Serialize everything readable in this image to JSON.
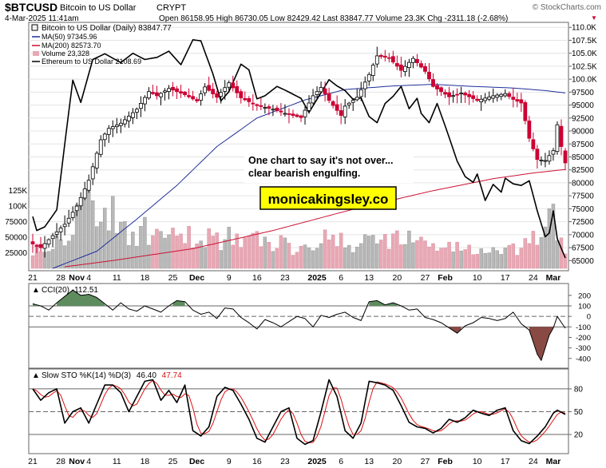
{
  "header": {
    "symbol": "$BTCUSD",
    "name": "Bitcoin to US Dollar",
    "exchange": "CRYPT",
    "copyright": "© StockCharts.com",
    "date": "4-Mar-2025 11:41am",
    "ohlc_text": "Open 86158.95  High 86730.05  Low 82429.42  Last 83847.77  Volume 23.3K  Chg -2311.18 (-2.68%)",
    "chg_arrow": "▼"
  },
  "annotations": {
    "note_line1": "One chart to say it's not over...",
    "note_line2": "clear bearish engulfing.",
    "watermark": "monicakingsley.co"
  },
  "colors": {
    "up": "#000000",
    "down": "#cc0033",
    "ma50": "#1f2f99",
    "ma200": "#cc1133",
    "eth": "#000000",
    "vol_down": "#e8a8b4",
    "vol_up": "#b8b8b8",
    "cci_pos": "#5e8c5e",
    "cci_neg": "#8a4a44",
    "sto_k": "#000000",
    "sto_d": "#dd1111",
    "watermark_bg": "#ffff00"
  },
  "chart_data": [
    {
      "type": "candlestick",
      "legend": [
        {
          "text": "Bitcoin to US Dollar (Daily) 83847.77",
          "swatch": "candle"
        },
        {
          "text": "MA(50) 97345.96",
          "swatch": "ma50"
        },
        {
          "text": "MA(200) 82573.70",
          "swatch": "ma200"
        },
        {
          "text": "Volume 23,328",
          "swatch": "vol"
        },
        {
          "text": "Ethereum to US Dollar 2108.69",
          "swatch": "eth"
        }
      ],
      "y_ticks": [
        65000,
        67500,
        70000,
        72500,
        75000,
        77500,
        80000,
        82500,
        85000,
        87500,
        90000,
        92500,
        95000,
        97500,
        100000,
        102500,
        105000,
        107500,
        110000
      ],
      "y_tick_labels": [
        "65000",
        "67500",
        "70000",
        "72500",
        "75000",
        "77500",
        "80000",
        "82500",
        "85000",
        "87500",
        "90000",
        "92500",
        "95000",
        "97500",
        "100.0K",
        "102.5K",
        "105.0K",
        "107.5K",
        "110.0K"
      ],
      "ylim": [
        63500,
        110500
      ],
      "volume_ticks": [
        "25000",
        "50000",
        "75000",
        "100K",
        "125K"
      ],
      "volume_tick_values": [
        25000,
        50000,
        75000,
        100000,
        125000
      ],
      "volume_max": 200000,
      "price_anchors": [
        [
          0,
          68200
        ],
        [
          2,
          67500
        ],
        [
          5,
          69800
        ],
        [
          8,
          72000
        ],
        [
          11,
          75500
        ],
        [
          14,
          80500
        ],
        [
          17,
          88300
        ],
        [
          19,
          90500
        ],
        [
          22,
          91500
        ],
        [
          26,
          94200
        ],
        [
          29,
          97600
        ],
        [
          31,
          96800
        ],
        [
          34,
          98200
        ],
        [
          38,
          97000
        ],
        [
          41,
          95800
        ],
        [
          43,
          98500
        ],
        [
          46,
          96500
        ],
        [
          49,
          99300
        ],
        [
          52,
          96400
        ],
        [
          56,
          94900
        ],
        [
          60,
          94200
        ],
        [
          63,
          93400
        ],
        [
          67,
          92600
        ],
        [
          70,
          96800
        ],
        [
          72,
          98400
        ],
        [
          74,
          95900
        ],
        [
          77,
          93000
        ],
        [
          78,
          94800
        ],
        [
          81,
          96500
        ],
        [
          84,
          100900
        ],
        [
          86,
          104500
        ],
        [
          89,
          104100
        ],
        [
          92,
          101700
        ],
        [
          95,
          104000
        ],
        [
          98,
          101500
        ],
        [
          100,
          98600
        ],
        [
          104,
          96600
        ],
        [
          107,
          97300
        ],
        [
          111,
          95900
        ],
        [
          115,
          96800
        ],
        [
          118,
          97200
        ],
        [
          120,
          96100
        ],
        [
          122,
          95400
        ],
        [
          124,
          88600
        ],
        [
          126,
          84500
        ],
        [
          128,
          84300
        ],
        [
          130,
          86200
        ],
        [
          131,
          91200
        ],
        [
          132,
          87000
        ],
        [
          133,
          83848
        ]
      ],
      "volume_anchors": [
        [
          0,
          35000
        ],
        [
          5,
          40000
        ],
        [
          10,
          75000
        ],
        [
          14,
          120000
        ],
        [
          18,
          90000
        ],
        [
          24,
          62000
        ],
        [
          30,
          55000
        ],
        [
          36,
          45000
        ],
        [
          42,
          52000
        ],
        [
          48,
          50000
        ],
        [
          54,
          44000
        ],
        [
          60,
          43000
        ],
        [
          66,
          34000
        ],
        [
          72,
          55000
        ],
        [
          78,
          36000
        ],
        [
          84,
          45000
        ],
        [
          90,
          52000
        ],
        [
          96,
          42000
        ],
        [
          100,
          38000
        ],
        [
          106,
          33000
        ],
        [
          112,
          28000
        ],
        [
          118,
          24000
        ],
        [
          124,
          36000
        ],
        [
          128,
          65000
        ],
        [
          130,
          80000
        ],
        [
          133,
          23328
        ]
      ],
      "ma50_anchors": [
        [
          0,
          62000
        ],
        [
          16,
          66800
        ],
        [
          26,
          73000
        ],
        [
          36,
          79500
        ],
        [
          46,
          87000
        ],
        [
          56,
          92500
        ],
        [
          68,
          96000
        ],
        [
          78,
          98000
        ],
        [
          90,
          98700
        ],
        [
          100,
          99000
        ],
        [
          110,
          98600
        ],
        [
          120,
          98300
        ],
        [
          128,
          97800
        ],
        [
          133,
          97346
        ]
      ],
      "ma200_anchors": [
        [
          8,
          63800
        ],
        [
          20,
          65000
        ],
        [
          40,
          67300
        ],
        [
          60,
          70800
        ],
        [
          80,
          74900
        ],
        [
          100,
          78500
        ],
        [
          115,
          80800
        ],
        [
          125,
          81900
        ],
        [
          133,
          82574
        ]
      ],
      "eth_anchors": [
        [
          0,
          73500
        ],
        [
          1,
          70800
        ],
        [
          3,
          71500
        ],
        [
          6,
          74800
        ],
        [
          8,
          87500
        ],
        [
          10,
          99800
        ],
        [
          12,
          95500
        ],
        [
          15,
          103800
        ],
        [
          18,
          104900
        ],
        [
          22,
          103200
        ],
        [
          25,
          105000
        ],
        [
          28,
          103800
        ],
        [
          31,
          104200
        ],
        [
          34,
          105400
        ],
        [
          37,
          102800
        ],
        [
          40,
          107600
        ],
        [
          42,
          107400
        ],
        [
          45,
          101000
        ],
        [
          47,
          95800
        ],
        [
          49,
          97600
        ],
        [
          52,
          102900
        ],
        [
          54,
          101800
        ],
        [
          56,
          96200
        ],
        [
          58,
          96800
        ],
        [
          61,
          98600
        ],
        [
          63,
          97900
        ],
        [
          67,
          96300
        ],
        [
          69,
          93600
        ],
        [
          72,
          97400
        ],
        [
          74,
          99900
        ],
        [
          76,
          98700
        ],
        [
          78,
          97800
        ],
        [
          80,
          96100
        ],
        [
          82,
          96400
        ],
        [
          84,
          92800
        ],
        [
          86,
          91600
        ],
        [
          88,
          95300
        ],
        [
          90,
          96700
        ],
        [
          92,
          98600
        ],
        [
          94,
          94300
        ],
        [
          96,
          96300
        ],
        [
          97,
          93400
        ],
        [
          99,
          91600
        ],
        [
          101,
          95300
        ],
        [
          103,
          91000
        ],
        [
          106,
          84200
        ],
        [
          108,
          81200
        ],
        [
          110,
          80100
        ],
        [
          111,
          81700
        ],
        [
          113,
          76600
        ],
        [
          115,
          79700
        ],
        [
          117,
          78200
        ],
        [
          118,
          80900
        ],
        [
          120,
          79800
        ],
        [
          122,
          79500
        ],
        [
          124,
          80400
        ],
        [
          126,
          74600
        ],
        [
          128,
          69600
        ],
        [
          129,
          70300
        ],
        [
          130,
          74600
        ],
        [
          131,
          69200
        ],
        [
          133,
          65500
        ]
      ]
    },
    {
      "type": "line",
      "label": "CCI(20) -112.51",
      "y_ticks": [
        200,
        100,
        0,
        -100,
        -200,
        -300,
        -400
      ],
      "y_tick_labels": [
        "200",
        "100",
        "0",
        "-100",
        "-200",
        "-300",
        "-400"
      ],
      "ylim": [
        -470,
        290
      ],
      "levels": [
        100,
        0,
        -100
      ],
      "anchors": [
        [
          0,
          120
        ],
        [
          2,
          100
        ],
        [
          4,
          60
        ],
        [
          6,
          130
        ],
        [
          8,
          190
        ],
        [
          10,
          250
        ],
        [
          12,
          200
        ],
        [
          14,
          210
        ],
        [
          16,
          180
        ],
        [
          18,
          120
        ],
        [
          20,
          60
        ],
        [
          22,
          130
        ],
        [
          24,
          70
        ],
        [
          26,
          50
        ],
        [
          28,
          100
        ],
        [
          30,
          70
        ],
        [
          32,
          40
        ],
        [
          34,
          100
        ],
        [
          36,
          150
        ],
        [
          38,
          140
        ],
        [
          40,
          60
        ],
        [
          42,
          20
        ],
        [
          44,
          40
        ],
        [
          46,
          -20
        ],
        [
          48,
          80
        ],
        [
          50,
          70
        ],
        [
          52,
          -10
        ],
        [
          54,
          -60
        ],
        [
          56,
          -120
        ],
        [
          58,
          -30
        ],
        [
          60,
          -60
        ],
        [
          62,
          -100
        ],
        [
          64,
          -50
        ],
        [
          66,
          0
        ],
        [
          68,
          -20
        ],
        [
          70,
          -100
        ],
        [
          72,
          10
        ],
        [
          74,
          -10
        ],
        [
          76,
          20
        ],
        [
          78,
          40
        ],
        [
          80,
          -10
        ],
        [
          82,
          -40
        ],
        [
          84,
          140
        ],
        [
          86,
          150
        ],
        [
          88,
          110
        ],
        [
          90,
          130
        ],
        [
          92,
          100
        ],
        [
          94,
          60
        ],
        [
          96,
          70
        ],
        [
          98,
          -10
        ],
        [
          100,
          -30
        ],
        [
          102,
          -60
        ],
        [
          104,
          -110
        ],
        [
          106,
          -160
        ],
        [
          108,
          -90
        ],
        [
          110,
          -60
        ],
        [
          112,
          -10
        ],
        [
          114,
          -20
        ],
        [
          116,
          -40
        ],
        [
          118,
          -20
        ],
        [
          120,
          40
        ],
        [
          122,
          -70
        ],
        [
          124,
          -130
        ],
        [
          126,
          -360
        ],
        [
          127,
          -420
        ],
        [
          129,
          -180
        ],
        [
          130,
          -110
        ],
        [
          131,
          0
        ],
        [
          133,
          -112.51
        ]
      ]
    },
    {
      "type": "line",
      "label_prefix": "Slow STO %K(14) %D(3)",
      "k_value": "46.40",
      "d_value": "47.74",
      "y_ticks": [
        80,
        50,
        20
      ],
      "y_tick_labels": [
        "80",
        "50",
        "20"
      ],
      "ylim": [
        -2,
        103
      ],
      "levels": [
        80,
        50,
        20
      ],
      "k_anchors": [
        [
          0,
          80
        ],
        [
          2,
          65
        ],
        [
          4,
          75
        ],
        [
          6,
          80
        ],
        [
          8,
          35
        ],
        [
          10,
          50
        ],
        [
          12,
          55
        ],
        [
          14,
          35
        ],
        [
          16,
          60
        ],
        [
          18,
          85
        ],
        [
          20,
          85
        ],
        [
          22,
          75
        ],
        [
          24,
          50
        ],
        [
          26,
          70
        ],
        [
          28,
          90
        ],
        [
          30,
          92
        ],
        [
          32,
          65
        ],
        [
          34,
          78
        ],
        [
          36,
          62
        ],
        [
          38,
          85
        ],
        [
          40,
          25
        ],
        [
          42,
          18
        ],
        [
          44,
          30
        ],
        [
          46,
          70
        ],
        [
          48,
          82
        ],
        [
          50,
          78
        ],
        [
          52,
          60
        ],
        [
          54,
          40
        ],
        [
          56,
          15
        ],
        [
          58,
          10
        ],
        [
          60,
          30
        ],
        [
          62,
          50
        ],
        [
          64,
          55
        ],
        [
          66,
          15
        ],
        [
          68,
          7
        ],
        [
          70,
          12
        ],
        [
          72,
          50
        ],
        [
          74,
          92
        ],
        [
          76,
          70
        ],
        [
          78,
          25
        ],
        [
          80,
          15
        ],
        [
          82,
          35
        ],
        [
          84,
          90
        ],
        [
          86,
          88
        ],
        [
          88,
          85
        ],
        [
          90,
          78
        ],
        [
          92,
          58
        ],
        [
          94,
          36
        ],
        [
          96,
          30
        ],
        [
          98,
          28
        ],
        [
          100,
          22
        ],
        [
          102,
          28
        ],
        [
          104,
          40
        ],
        [
          106,
          36
        ],
        [
          108,
          42
        ],
        [
          110,
          52
        ],
        [
          112,
          48
        ],
        [
          114,
          45
        ],
        [
          116,
          52
        ],
        [
          118,
          55
        ],
        [
          120,
          25
        ],
        [
          122,
          12
        ],
        [
          124,
          8
        ],
        [
          126,
          18
        ],
        [
          128,
          30
        ],
        [
          130,
          48
        ],
        [
          131,
          52
        ],
        [
          133,
          46.4
        ]
      ]
    }
  ],
  "x_axis": {
    "labels": [
      {
        "text": "21",
        "i": 0,
        "bold": false
      },
      {
        "text": "28",
        "i": 7,
        "bold": false
      },
      {
        "text": "Nov",
        "i": 11,
        "bold": true
      },
      {
        "text": "4",
        "i": 14,
        "bold": false
      },
      {
        "text": "11",
        "i": 21,
        "bold": false
      },
      {
        "text": "18",
        "i": 28,
        "bold": false
      },
      {
        "text": "25",
        "i": 35,
        "bold": false
      },
      {
        "text": "Dec",
        "i": 41,
        "bold": true
      },
      {
        "text": "9",
        "i": 49,
        "bold": false
      },
      {
        "text": "16",
        "i": 56,
        "bold": false
      },
      {
        "text": "23",
        "i": 63,
        "bold": false
      },
      {
        "text": "2025",
        "i": 71,
        "bold": true
      },
      {
        "text": "6",
        "i": 77,
        "bold": false
      },
      {
        "text": "13",
        "i": 84,
        "bold": false
      },
      {
        "text": "20",
        "i": 91,
        "bold": false
      },
      {
        "text": "27",
        "i": 98,
        "bold": false
      },
      {
        "text": "Feb",
        "i": 103,
        "bold": true
      },
      {
        "text": "10",
        "i": 111,
        "bold": false
      },
      {
        "text": "17",
        "i": 118,
        "bold": false
      },
      {
        "text": "24",
        "i": 125,
        "bold": false
      },
      {
        "text": "Mar",
        "i": 130,
        "bold": true
      }
    ]
  }
}
